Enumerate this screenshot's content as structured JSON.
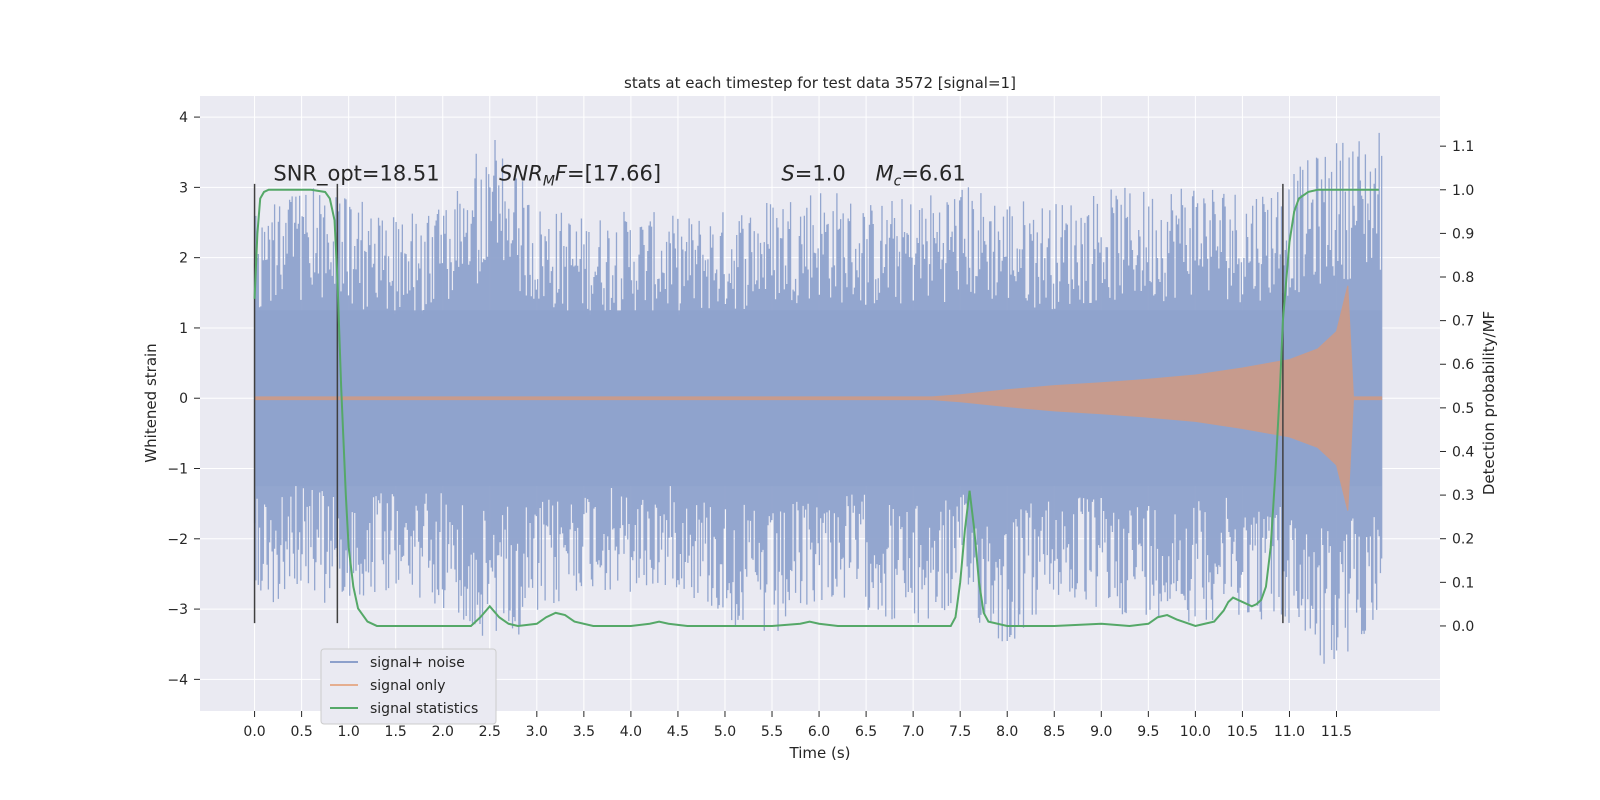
{
  "chart_data": {
    "type": "line",
    "title": "stats at each timestep for test data 3572 [signal=1]",
    "xlabel": "Time (s)",
    "ylabel": "Whitened strain",
    "y2label": "Detection probability/MF",
    "xlim": [
      -0.58,
      12.6
    ],
    "ylim": [
      -4.45,
      4.3
    ],
    "y2lim": [
      -0.195,
      1.215
    ],
    "x_ticks": [
      0.0,
      0.5,
      1.0,
      1.5,
      2.0,
      2.5,
      3.0,
      3.5,
      4.0,
      4.5,
      5.0,
      5.5,
      6.0,
      6.5,
      7.0,
      7.5,
      8.0,
      8.5,
      9.0,
      9.5,
      10.0,
      10.5,
      11.0,
      11.5
    ],
    "x_tick_labels": [
      "0.0",
      "0.5",
      "1.0",
      "1.5",
      "2.0",
      "2.5",
      "3.0",
      "3.5",
      "4.0",
      "4.5",
      "5.0",
      "5.5",
      "6.0",
      "6.5",
      "7.0",
      "7.5",
      "8.0",
      "8.5",
      "9.0",
      "9.5",
      "10.0",
      "10.5",
      "11.0",
      "11.5"
    ],
    "y_ticks": [
      -4,
      -3,
      -2,
      -1,
      0,
      1,
      2,
      3,
      4
    ],
    "y_tick_labels": [
      "−4",
      "−3",
      "−2",
      "−1",
      "0",
      "1",
      "2",
      "3",
      "4"
    ],
    "y2_ticks": [
      0.0,
      0.1,
      0.2,
      0.3,
      0.4,
      0.5,
      0.6,
      0.7,
      0.8,
      0.9,
      1.0,
      1.1
    ],
    "y2_tick_labels": [
      "0.0",
      "0.1",
      "0.2",
      "0.3",
      "0.4",
      "0.5",
      "0.6",
      "0.7",
      "0.8",
      "0.9",
      "1.0",
      "1.1"
    ],
    "grid": true,
    "legend_position": "lower-left",
    "noise_envelope": {
      "x": [
        0.0,
        0.5,
        1.0,
        1.5,
        2.0,
        2.5,
        3.0,
        3.5,
        4.0,
        4.5,
        5.0,
        5.5,
        6.0,
        6.5,
        7.0,
        7.5,
        8.0,
        8.5,
        9.0,
        9.5,
        10.0,
        10.5,
        11.0,
        11.5,
        11.98
      ],
      "upper": [
        2.6,
        3.1,
        2.9,
        2.6,
        2.7,
        3.85,
        2.8,
        2.6,
        2.7,
        2.6,
        2.7,
        2.9,
        3.1,
        2.8,
        2.9,
        3.1,
        2.9,
        2.8,
        3.0,
        3.0,
        3.2,
        3.0,
        3.2,
        3.7,
        3.9
      ],
      "lower": [
        -3.2,
        -2.6,
        -3.3,
        -2.7,
        -3.0,
        -3.5,
        -3.3,
        -2.7,
        -2.9,
        -2.7,
        -3.2,
        -3.6,
        -2.9,
        -3.0,
        -3.4,
        -3.0,
        -3.6,
        -2.9,
        -3.1,
        -3.1,
        -3.2,
        -3.1,
        -3.3,
        -4.05,
        -3.0
      ]
    },
    "signal_envelope": {
      "x": [
        0.0,
        7.2,
        7.5,
        8.0,
        8.5,
        9.0,
        9.5,
        10.0,
        10.5,
        11.0,
        11.3,
        11.5,
        11.62,
        11.68,
        11.98
      ],
      "upper": [
        0.02,
        0.02,
        0.05,
        0.12,
        0.18,
        0.22,
        0.27,
        0.33,
        0.43,
        0.55,
        0.7,
        0.95,
        1.6,
        0.02,
        0.02
      ],
      "lower": [
        -0.02,
        -0.02,
        -0.05,
        -0.12,
        -0.18,
        -0.22,
        -0.27,
        -0.33,
        -0.43,
        -0.55,
        -0.7,
        -0.95,
        -1.6,
        -0.02,
        -0.02
      ]
    },
    "series": [
      {
        "name": "signal statistics",
        "axis": "right",
        "x": [
          0.0,
          0.03,
          0.06,
          0.1,
          0.15,
          0.25,
          0.4,
          0.6,
          0.75,
          0.8,
          0.85,
          0.88,
          0.92,
          0.97,
          1.0,
          1.05,
          1.1,
          1.2,
          1.3,
          1.4,
          1.5,
          1.7,
          2.0,
          2.1,
          2.2,
          2.3,
          2.4,
          2.5,
          2.6,
          2.7,
          2.8,
          3.0,
          3.1,
          3.2,
          3.3,
          3.4,
          3.6,
          4.0,
          4.2,
          4.3,
          4.4,
          4.6,
          5.0,
          5.5,
          5.8,
          5.9,
          6.0,
          6.2,
          7.0,
          7.4,
          7.45,
          7.5,
          7.55,
          7.6,
          7.65,
          7.7,
          7.75,
          7.8,
          8.0,
          8.5,
          9.0,
          9.3,
          9.5,
          9.6,
          9.7,
          9.8,
          10.0,
          10.1,
          10.2,
          10.3,
          10.35,
          10.4,
          10.5,
          10.6,
          10.65,
          10.7,
          10.75,
          10.8,
          10.85,
          10.9,
          10.93,
          11.0,
          11.05,
          11.1,
          11.2,
          11.3,
          11.5,
          11.7,
          11.95
        ],
        "values": [
          0.75,
          0.9,
          0.98,
          0.995,
          1.0,
          1.0,
          1.0,
          1.0,
          0.995,
          0.98,
          0.93,
          0.8,
          0.55,
          0.3,
          0.18,
          0.09,
          0.04,
          0.01,
          0.0,
          0.0,
          0.0,
          0.0,
          0.0,
          0.0,
          0.0,
          0.0,
          0.02,
          0.045,
          0.02,
          0.005,
          0.0,
          0.005,
          0.02,
          0.03,
          0.025,
          0.01,
          0.0,
          0.0,
          0.005,
          0.01,
          0.005,
          0.0,
          0.0,
          0.0,
          0.005,
          0.01,
          0.005,
          0.0,
          0.0,
          0.0,
          0.02,
          0.1,
          0.22,
          0.31,
          0.22,
          0.1,
          0.03,
          0.01,
          0.0,
          0.0,
          0.005,
          0.0,
          0.005,
          0.02,
          0.025,
          0.015,
          0.0,
          0.005,
          0.01,
          0.035,
          0.055,
          0.065,
          0.055,
          0.045,
          0.05,
          0.06,
          0.09,
          0.18,
          0.35,
          0.55,
          0.7,
          0.88,
          0.95,
          0.98,
          0.995,
          1.0,
          1.0,
          1.0,
          1.0
        ],
        "color": "#55a868"
      }
    ],
    "vlines": [
      0.0,
      0.88,
      10.93
    ],
    "annotations": [
      {
        "text": "SNR_opt=18.51",
        "x": 0.2,
        "y": 3.1
      },
      {
        "prefix": "SNR",
        "sub": "M",
        "suffix": "F=[17.66]",
        "x": 2.6,
        "y": 3.1
      },
      {
        "prefix": "S",
        "suffix": "=1.0",
        "x": 5.6,
        "y": 3.1
      },
      {
        "prefix": "M",
        "sub": "c",
        "suffix": "=6.61",
        "x": 6.6,
        "y": 3.1
      }
    ],
    "legend": [
      {
        "label": "signal+ noise",
        "color": "#8da0cb"
      },
      {
        "label": "signal only",
        "color": "#e5ae8f"
      },
      {
        "label": "signal statistics",
        "color": "#55a868"
      }
    ],
    "colors": {
      "plot_bg": "#eaeaf2",
      "grid": "#ffffff",
      "noise": "#8ea2cc",
      "signal": "#d19a82",
      "stats": "#55a868",
      "vline": "#404040"
    }
  }
}
